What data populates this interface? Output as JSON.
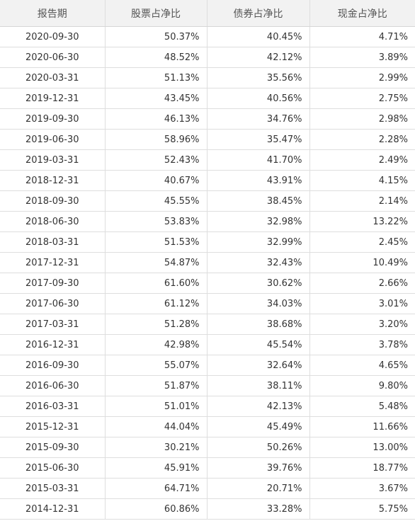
{
  "table": {
    "headers": [
      "报告期",
      "股票占净比",
      "债券占净比",
      "现金占净比"
    ],
    "rows": [
      {
        "date": "2020-09-30",
        "stock": "50.37%",
        "bond": "40.45%",
        "cash": "4.71%"
      },
      {
        "date": "2020-06-30",
        "stock": "48.52%",
        "bond": "42.12%",
        "cash": "3.89%"
      },
      {
        "date": "2020-03-31",
        "stock": "51.13%",
        "bond": "35.56%",
        "cash": "2.99%"
      },
      {
        "date": "2019-12-31",
        "stock": "43.45%",
        "bond": "40.56%",
        "cash": "2.75%"
      },
      {
        "date": "2019-09-30",
        "stock": "46.13%",
        "bond": "34.76%",
        "cash": "2.98%"
      },
      {
        "date": "2019-06-30",
        "stock": "58.96%",
        "bond": "35.47%",
        "cash": "2.28%"
      },
      {
        "date": "2019-03-31",
        "stock": "52.43%",
        "bond": "41.70%",
        "cash": "2.49%"
      },
      {
        "date": "2018-12-31",
        "stock": "40.67%",
        "bond": "43.91%",
        "cash": "4.15%"
      },
      {
        "date": "2018-09-30",
        "stock": "45.55%",
        "bond": "38.45%",
        "cash": "2.14%"
      },
      {
        "date": "2018-06-30",
        "stock": "53.83%",
        "bond": "32.98%",
        "cash": "13.22%"
      },
      {
        "date": "2018-03-31",
        "stock": "51.53%",
        "bond": "32.99%",
        "cash": "2.45%"
      },
      {
        "date": "2017-12-31",
        "stock": "54.87%",
        "bond": "32.43%",
        "cash": "10.49%"
      },
      {
        "date": "2017-09-30",
        "stock": "61.60%",
        "bond": "30.62%",
        "cash": "2.66%"
      },
      {
        "date": "2017-06-30",
        "stock": "61.12%",
        "bond": "34.03%",
        "cash": "3.01%"
      },
      {
        "date": "2017-03-31",
        "stock": "51.28%",
        "bond": "38.68%",
        "cash": "3.20%"
      },
      {
        "date": "2016-12-31",
        "stock": "42.98%",
        "bond": "45.54%",
        "cash": "3.78%"
      },
      {
        "date": "2016-09-30",
        "stock": "55.07%",
        "bond": "32.64%",
        "cash": "4.65%"
      },
      {
        "date": "2016-06-30",
        "stock": "51.87%",
        "bond": "38.11%",
        "cash": "9.80%"
      },
      {
        "date": "2016-03-31",
        "stock": "51.01%",
        "bond": "42.13%",
        "cash": "5.48%"
      },
      {
        "date": "2015-12-31",
        "stock": "44.04%",
        "bond": "45.49%",
        "cash": "11.66%"
      },
      {
        "date": "2015-09-30",
        "stock": "30.21%",
        "bond": "50.26%",
        "cash": "13.00%"
      },
      {
        "date": "2015-06-30",
        "stock": "45.91%",
        "bond": "39.76%",
        "cash": "18.77%"
      },
      {
        "date": "2015-03-31",
        "stock": "64.71%",
        "bond": "20.71%",
        "cash": "3.67%"
      },
      {
        "date": "2014-12-31",
        "stock": "60.86%",
        "bond": "33.28%",
        "cash": "5.75%"
      }
    ]
  }
}
